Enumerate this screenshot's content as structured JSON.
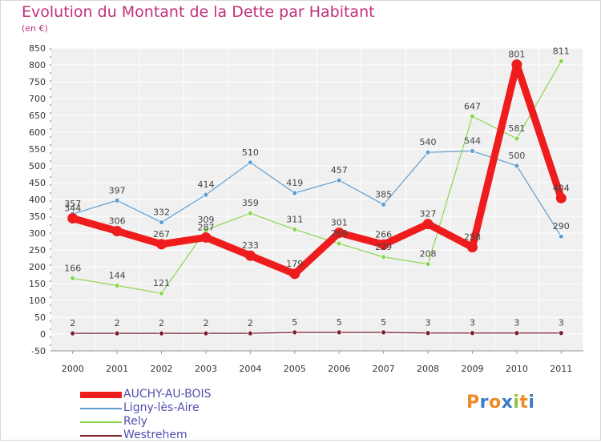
{
  "title": "Evolution du Montant de la Dette par Habitant",
  "unit": "(en €)",
  "brand": "Proxiti",
  "chart_data": {
    "type": "line",
    "title": "Evolution du Montant de la Dette par Habitant",
    "ylabel": "(en €)",
    "x": [
      "2000",
      "2001",
      "2002",
      "2003",
      "2004",
      "2005",
      "2006",
      "2007",
      "2008",
      "2009",
      "2010",
      "2011"
    ],
    "ylim": [
      -50,
      850
    ],
    "yticks": [
      -50,
      0,
      50,
      100,
      150,
      200,
      250,
      300,
      350,
      400,
      450,
      500,
      550,
      600,
      650,
      700,
      750,
      800,
      850
    ],
    "grid": true,
    "legend": "bottom-left",
    "series": [
      {
        "name": "Ligny-lès-Aire",
        "color": "#5e9fd1",
        "values": [
          357,
          397,
          332,
          414,
          510,
          419,
          457,
          385,
          540,
          544,
          500,
          290
        ]
      },
      {
        "name": "Rely",
        "color": "#8ad64f",
        "values": [
          166,
          144,
          121,
          309,
          359,
          311,
          269,
          229,
          208,
          647,
          581,
          811
        ]
      },
      {
        "name": "Westrehem",
        "color": "#7a1f2e",
        "values": [
          2,
          2,
          2,
          2,
          2,
          5,
          5,
          5,
          3,
          3,
          3,
          3
        ]
      },
      {
        "name": "AUCHY-AU-BOIS",
        "color": "#ee1c1c",
        "values": [
          344,
          306,
          267,
          287,
          233,
          179,
          301,
          266,
          327,
          258,
          801,
          404
        ]
      }
    ]
  }
}
